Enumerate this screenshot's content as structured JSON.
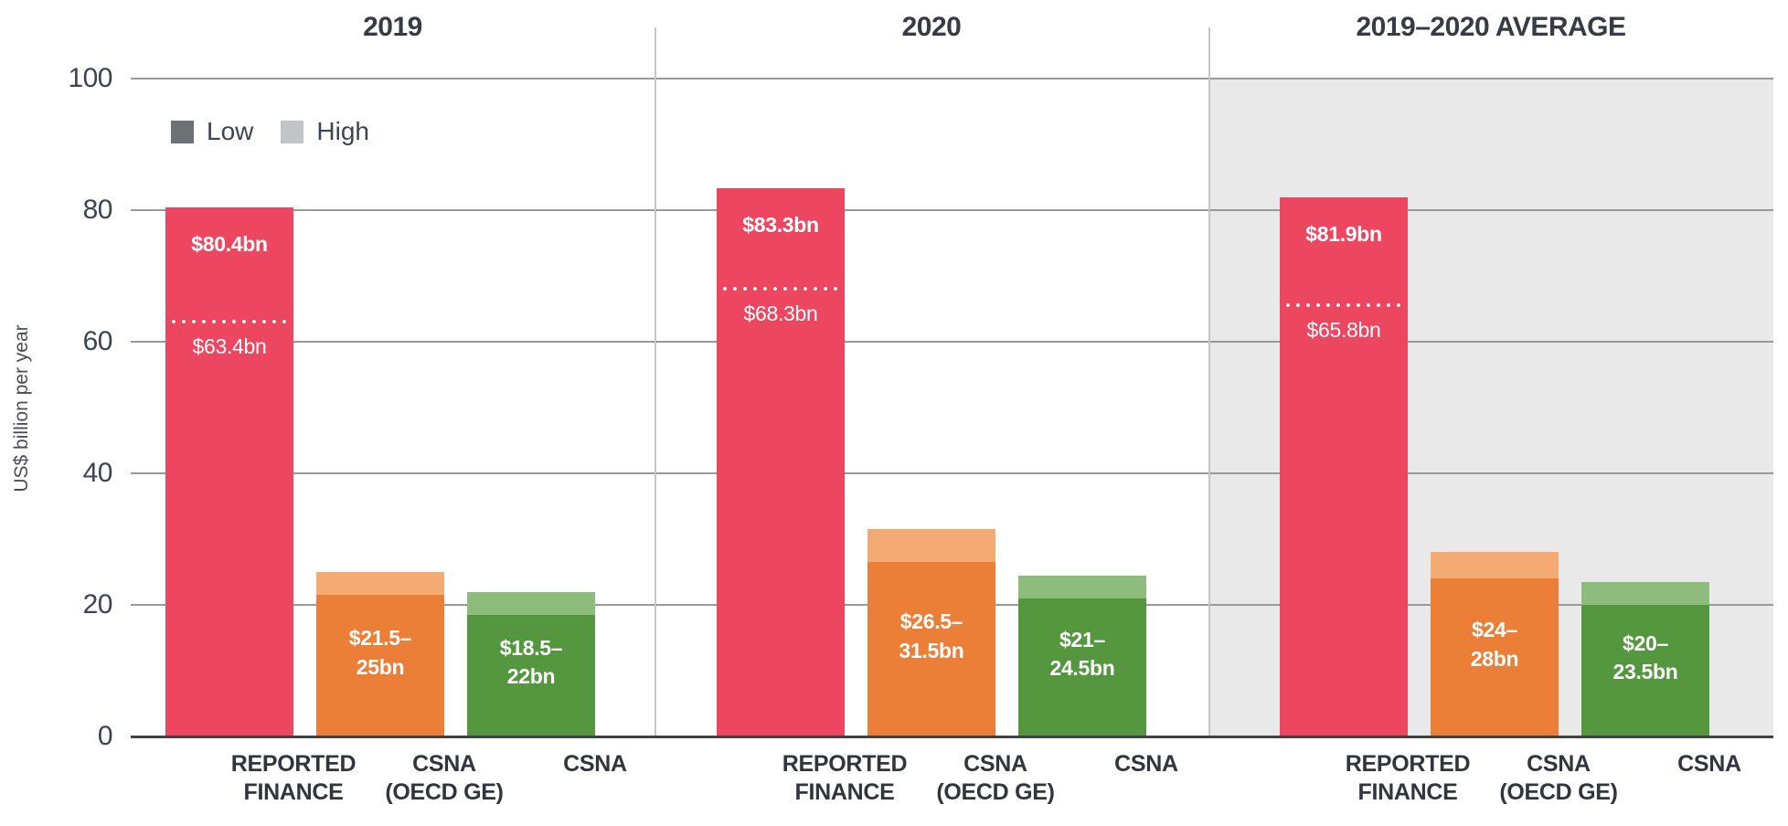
{
  "chart_data": {
    "type": "bar",
    "title": "",
    "ylabel": "US$ billion per year",
    "ylim": [
      0,
      100
    ],
    "y_ticks": [
      "100",
      "80",
      "60",
      "40",
      "20",
      "0"
    ],
    "grid": true,
    "legend_position": "top-left",
    "legend": {
      "low": "Low",
      "high": "High"
    },
    "categories": [
      "REPORTED FINANCE",
      "CSNA (OECD GE)",
      "CSNA"
    ],
    "x_label_lines": [
      [
        "REPORTED",
        "FINANCE"
      ],
      [
        "CSNA",
        "(OECD GE)"
      ],
      [
        "CSNA",
        ""
      ]
    ],
    "colors": {
      "reported_finance": "#ed4661",
      "csna_oecd_low": "#eb7f37",
      "csna_oecd_high": "#f3ab73",
      "csna_low": "#55973e",
      "csna_high": "#8ebc7d",
      "legend_low": "#6e7277",
      "legend_high": "#c3c4c6",
      "highlight_panel_bg": "#e9e9ea",
      "gridline": "#97999c",
      "baseline": "#3f4145",
      "text": "#3c4454"
    },
    "panels": [
      {
        "title": "2019",
        "highlighted": false,
        "bars": [
          {
            "name": "REPORTED FINANCE",
            "type": "solid",
            "value": 80.4,
            "marker": 63.4,
            "label": "$80.4bn",
            "marker_label": "$63.4bn"
          },
          {
            "name": "CSNA (OECD GE)",
            "type": "range",
            "low": 21.5,
            "high": 25,
            "label_lines": [
              "$21.5–",
              "25bn"
            ]
          },
          {
            "name": "CSNA",
            "type": "range",
            "low": 18.5,
            "high": 22,
            "label_lines": [
              "$18.5–",
              "22bn"
            ]
          }
        ]
      },
      {
        "title": "2020",
        "highlighted": false,
        "bars": [
          {
            "name": "REPORTED FINANCE",
            "type": "solid",
            "value": 83.3,
            "marker": 68.3,
            "label": "$83.3bn",
            "marker_label": "$68.3bn"
          },
          {
            "name": "CSNA (OECD GE)",
            "type": "range",
            "low": 26.5,
            "high": 31.5,
            "label_lines": [
              "$26.5–",
              "31.5bn"
            ]
          },
          {
            "name": "CSNA",
            "type": "range",
            "low": 21,
            "high": 24.5,
            "label_lines": [
              "$21–",
              "24.5bn"
            ]
          }
        ]
      },
      {
        "title": "2019–2020 AVERAGE",
        "highlighted": true,
        "bars": [
          {
            "name": "REPORTED FINANCE",
            "type": "solid",
            "value": 81.9,
            "marker": 65.8,
            "label": "$81.9bn",
            "marker_label": "$65.8bn"
          },
          {
            "name": "CSNA (OECD GE)",
            "type": "range",
            "low": 24,
            "high": 28,
            "label_lines": [
              "$24–",
              "28bn"
            ]
          },
          {
            "name": "CSNA",
            "type": "range",
            "low": 20,
            "high": 23.5,
            "label_lines": [
              "$20–",
              "23.5bn"
            ]
          }
        ]
      }
    ]
  }
}
